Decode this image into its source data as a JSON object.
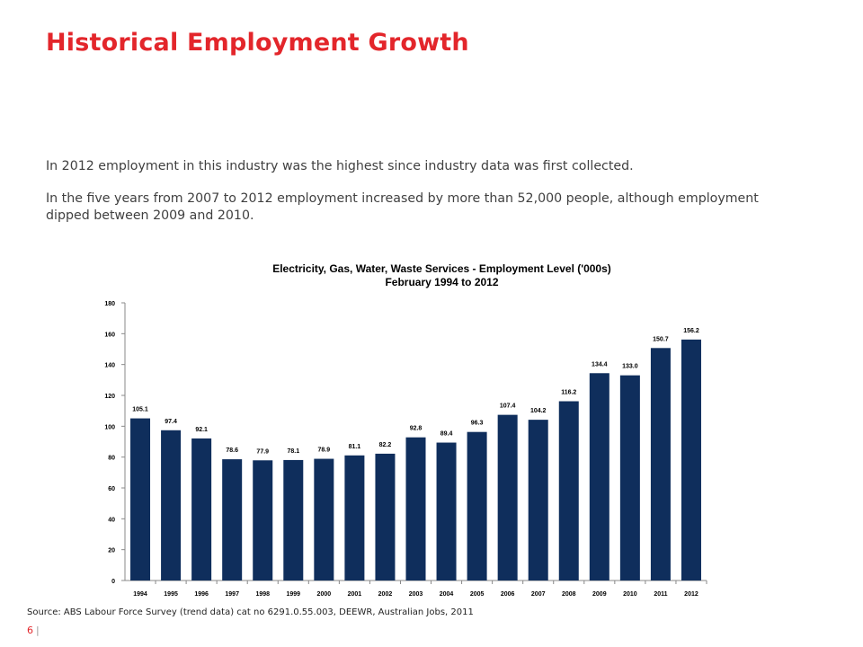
{
  "page": {
    "title": "Historical Employment Growth",
    "paragraphs": [
      "In 2012 employment in this industry was the highest since industry data was first collected.",
      "In the five years from 2007 to 2012 employment increased by more than 52,000 people, although employment dipped between 2009 and 2010."
    ],
    "source": "Source: ABS Labour Force Survey (trend data) cat no 6291.0.55.003, DEEWR, Australian Jobs, 2011",
    "page_number": "6",
    "page_separator": "|"
  },
  "colors": {
    "title": "#e3262b",
    "bar": "#0f2e5c",
    "text": "#404040"
  },
  "chart_data": {
    "type": "bar",
    "title": "Electricity, Gas, Water, Waste Services - Employment Level ('000s)",
    "subtitle": "February 1994 to 2012",
    "categories": [
      "1994",
      "1995",
      "1996",
      "1997",
      "1998",
      "1999",
      "2000",
      "2001",
      "2002",
      "2003",
      "2004",
      "2005",
      "2006",
      "2007",
      "2008",
      "2009",
      "2010",
      "2011",
      "2012"
    ],
    "values": [
      105.1,
      97.4,
      92.1,
      78.6,
      77.9,
      78.1,
      78.9,
      81.1,
      82.2,
      92.8,
      89.4,
      96.3,
      107.4,
      104.2,
      116.2,
      134.4,
      133.0,
      150.7,
      156.2
    ],
    "value_labels": [
      "105.1",
      "97.4",
      "92.1",
      "78.6",
      "77.9",
      "78.1",
      "78.9",
      "81.1",
      "82.2",
      "92.8",
      "89.4",
      "96.3",
      "107.4",
      "104.2",
      "116.2",
      "134.4",
      "133.0",
      "150.7",
      "156.2"
    ],
    "ylim": [
      0,
      180
    ],
    "yticks": [
      0,
      20,
      40,
      60,
      80,
      100,
      120,
      140,
      160,
      180
    ],
    "xlabel": "",
    "ylabel": "",
    "grid": false,
    "legend": "none"
  }
}
